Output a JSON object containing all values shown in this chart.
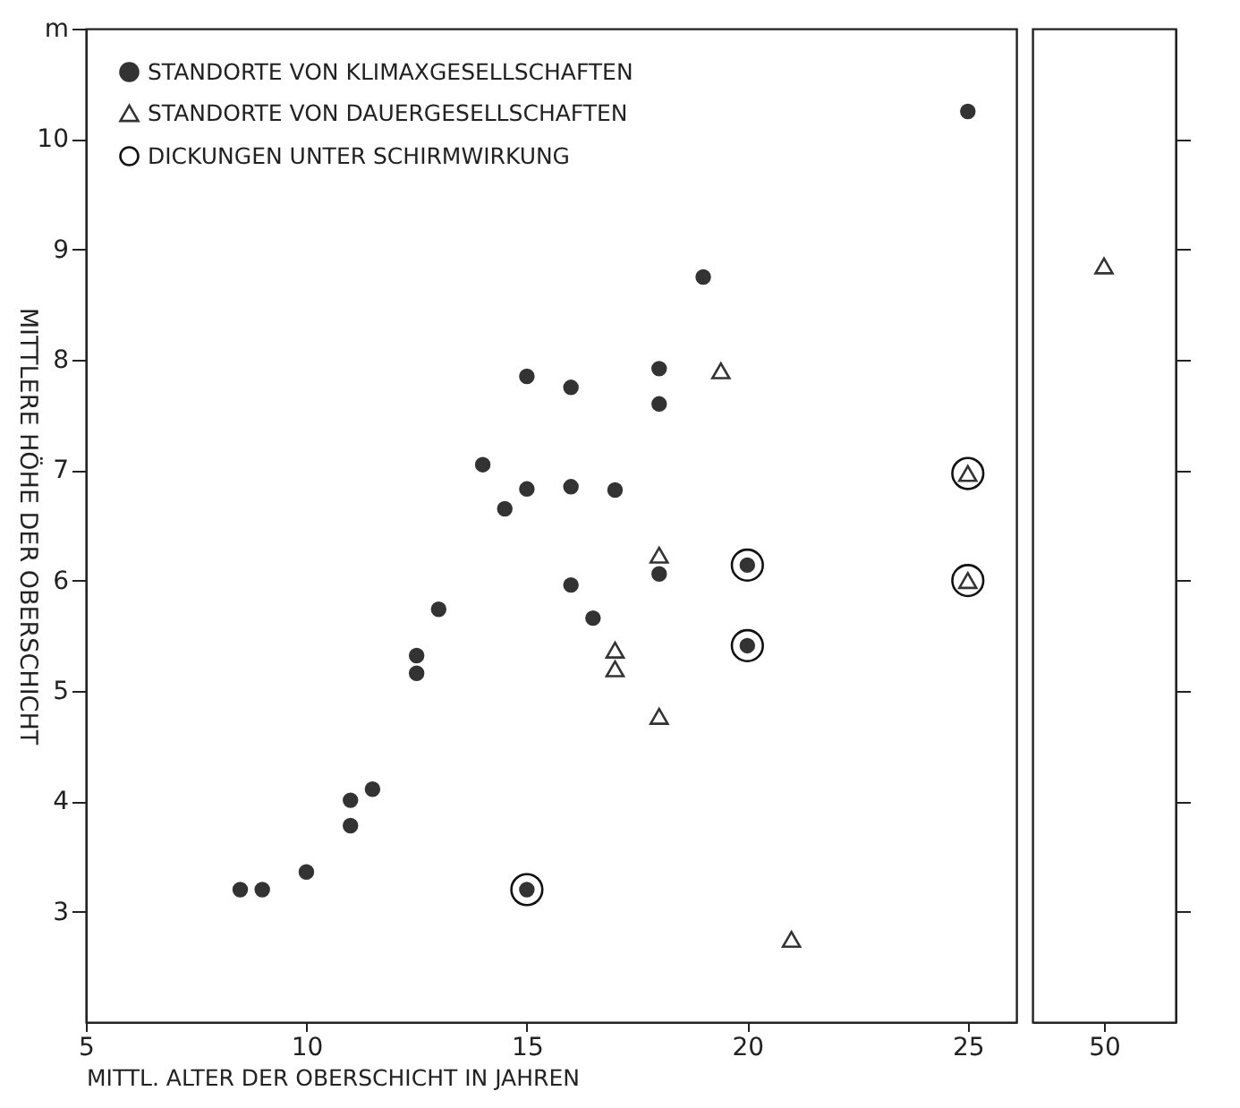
{
  "chart_data": [
    {
      "type": "scatter",
      "xlabel": "MITTL. ALTER DER OBERSCHICHT IN JAHREN",
      "ylabel": "MITTLERE HÖHE DER OBERSCHICHT",
      "xlim": [
        5,
        26.1
      ],
      "xticks": [
        5,
        10,
        15,
        20,
        25
      ],
      "ylim": [
        2,
        11
      ],
      "yticks": [
        3,
        4,
        5,
        6,
        7,
        8,
        9,
        10,
        {
          "value": 11,
          "label": "m"
        }
      ],
      "grid": false,
      "legend": "top left",
      "series": [
        {
          "name": "STANDORTE VON KLIMAXGESELLSCHAFTEN",
          "color": "#333333",
          "marker": "circle",
          "x": [
            8.5,
            9,
            10,
            11,
            11,
            11.5,
            12.5,
            12.5,
            13,
            14,
            14.5,
            15,
            15,
            15,
            16,
            16,
            16,
            16.5,
            17,
            18,
            18,
            18,
            19,
            20,
            20,
            25
          ],
          "values": [
            3.2,
            3.2,
            3.36,
            3.78,
            4.01,
            4.11,
            5.16,
            5.32,
            5.74,
            7.05,
            6.65,
            6.83,
            7.85,
            3.2,
            7.75,
            6.85,
            5.96,
            5.66,
            6.82,
            7.92,
            7.6,
            6.06,
            8.75,
            6.14,
            5.41,
            10.25
          ]
        },
        {
          "name": "STANDORTE VON DAUERGESELLSCHAFTEN",
          "color": "#333333",
          "marker": "triangle",
          "x": [
            17,
            17,
            18,
            18,
            19.4,
            21,
            25,
            25
          ],
          "values": [
            5.37,
            5.2,
            6.23,
            4.77,
            7.9,
            2.75,
            6.97,
            6.0
          ]
        },
        {
          "name": "DICKUNGEN UNTER SCHIRMWIRKUNG",
          "type": "bubble",
          "color": "#111111",
          "marker": "circle",
          "x": [
            15,
            20,
            20,
            25,
            25
          ],
          "values": [
            3.2,
            6.14,
            5.41,
            6.97,
            6.0
          ],
          "sizes": [
            1,
            1,
            1,
            1,
            1
          ]
        }
      ]
    },
    {
      "type": "scatter",
      "categories": [
        "50"
      ],
      "ylim": [
        2,
        11
      ],
      "yticks": [
        3,
        4,
        5,
        6,
        7,
        8,
        9,
        10
      ],
      "grid": false,
      "tick_labels": "x",
      "series": [
        {
          "color": "#333333",
          "marker": "triangle",
          "values": [
            8.85
          ]
        }
      ]
    }
  ]
}
